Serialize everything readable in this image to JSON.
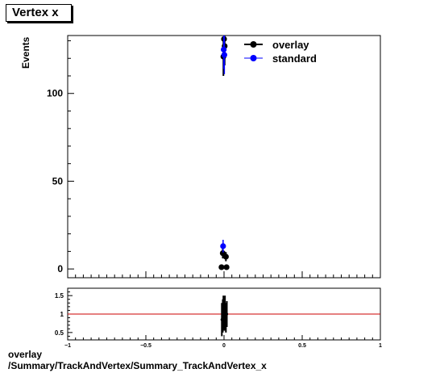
{
  "title": "Vertex x",
  "ylabel": "Events",
  "footer": {
    "line1": "overlay",
    "line2": "/Summary/TrackAndVertex/Summary_TrackAndVertex_x"
  },
  "colors": {
    "overlay": "#000000",
    "standard": "#0000ff",
    "ratio_line": "#cc0000"
  },
  "chart_data": [
    {
      "type": "scatter",
      "panel": "main",
      "xlim": [
        -1,
        1
      ],
      "ylim": [
        -5,
        133
      ],
      "yticks": [
        0,
        50,
        100
      ],
      "ytick_labels": [
        "0",
        "50",
        "100"
      ],
      "legend": [
        "overlay",
        "standard"
      ],
      "legend_placement": "top-right",
      "series": [
        {
          "name": "overlay",
          "color": "#000000",
          "points": [
            {
              "x": -0.016,
              "y": 1,
              "err": 1
            },
            {
              "x": -0.008,
              "y": 9,
              "err": 3
            },
            {
              "x": -0.004,
              "y": 121,
              "err": 11
            },
            {
              "x": 0.0,
              "y": 131,
              "err": 11.5
            },
            {
              "x": 0.004,
              "y": 127,
              "err": 11
            },
            {
              "x": 0.012,
              "y": 7,
              "err": 2.6
            },
            {
              "x": 0.016,
              "y": 1,
              "err": 1
            }
          ]
        },
        {
          "name": "standard",
          "color": "#0000ff",
          "points": [
            {
              "x": -0.006,
              "y": 13,
              "err": 3.6
            },
            {
              "x": -0.002,
              "y": 125,
              "err": 11
            },
            {
              "x": 0.002,
              "y": 122,
              "err": 11
            }
          ]
        }
      ]
    },
    {
      "type": "scatter",
      "panel": "ratio",
      "xlim": [
        -1,
        1
      ],
      "ylim": [
        0.3,
        1.7
      ],
      "yticks": [
        0.5,
        1,
        1.5
      ],
      "ytick_labels": [
        "0.5",
        "1",
        "1.5"
      ],
      "xticks": [
        -1,
        -0.5,
        0,
        0.5,
        1
      ],
      "xtick_labels": [
        "−1",
        "−0.5",
        "0",
        "0.5",
        "1"
      ],
      "reference_line": 1,
      "points": [
        {
          "x": -0.014,
          "y": 0.85,
          "err": 0.45
        },
        {
          "x": -0.008,
          "y": 0.95,
          "err": 0.45
        },
        {
          "x": -0.004,
          "y": 1.05,
          "err": 0.45
        },
        {
          "x": 0.002,
          "y": 1.0,
          "err": 0.45
        },
        {
          "x": 0.006,
          "y": 1.05,
          "err": 0.45
        },
        {
          "x": 0.012,
          "y": 0.9,
          "err": 0.4
        },
        {
          "x": 0.018,
          "y": 1.0,
          "err": 0.35
        }
      ]
    }
  ]
}
